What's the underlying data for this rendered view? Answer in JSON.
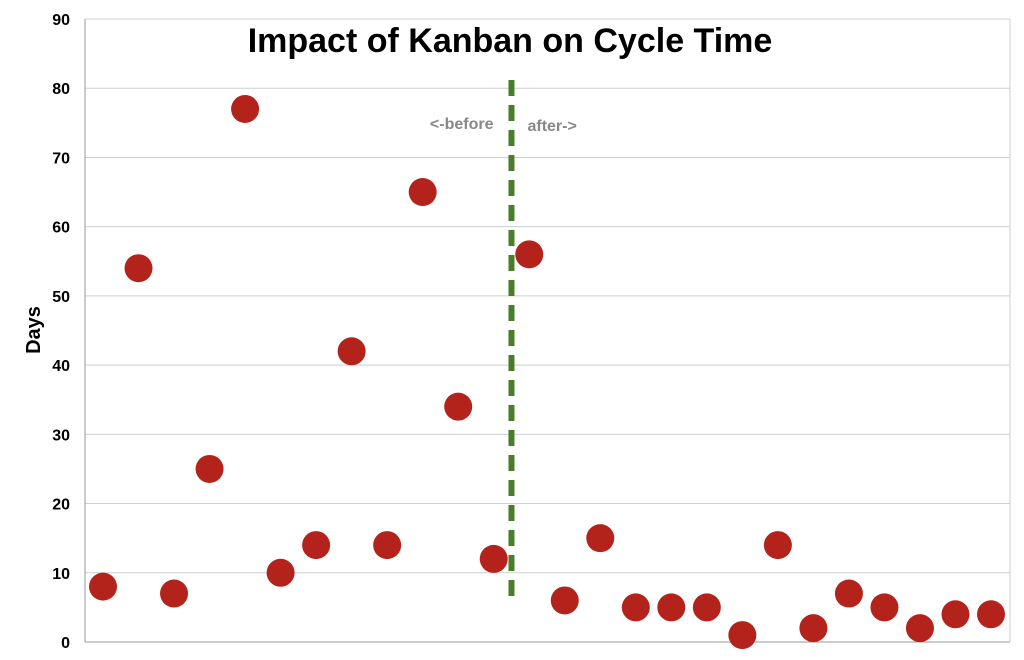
{
  "chart_data": {
    "type": "scatter",
    "title": "Impact of Kanban on Cycle Time",
    "xlabel": "",
    "ylabel": "Days",
    "ylim": [
      0,
      90
    ],
    "yticks": [
      0,
      10,
      20,
      30,
      40,
      50,
      60,
      70,
      80,
      90
    ],
    "grid": true,
    "legend": "none",
    "point_color": "#b3231c",
    "divider_color": "#4a7d2a",
    "divider_after_index": 12,
    "annotations": {
      "before": "<-before",
      "after": "after->"
    },
    "x": [
      1,
      2,
      3,
      4,
      5,
      6,
      7,
      8,
      9,
      10,
      11,
      12,
      13,
      14,
      15,
      16,
      17,
      18,
      19,
      20,
      21,
      22,
      23,
      24,
      25,
      26
    ],
    "y": [
      8,
      54,
      7,
      25,
      77,
      10,
      14,
      42,
      14,
      65,
      34,
      12,
      56,
      6,
      15,
      5,
      5,
      5,
      1,
      14,
      2,
      7,
      5,
      2,
      4,
      4
    ]
  }
}
